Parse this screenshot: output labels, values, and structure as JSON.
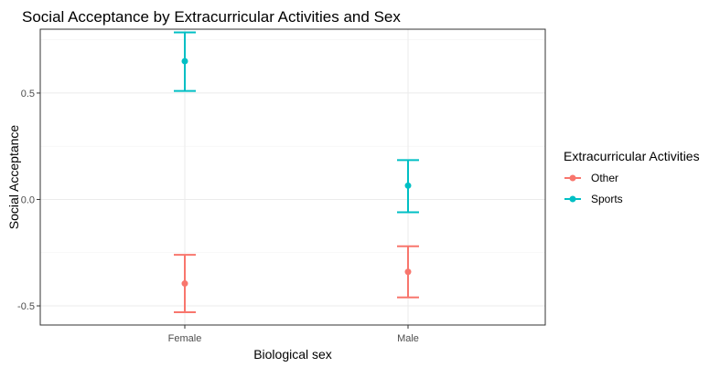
{
  "chart_data": {
    "type": "errorbar",
    "title": "Social Acceptance by Extracurricular Activities and Sex",
    "xlabel": "Biological sex",
    "ylabel": "Social Acceptance",
    "categories": [
      "Female",
      "Male"
    ],
    "ylim": [
      -0.59,
      0.8
    ],
    "yticks": [
      -0.5,
      0.0,
      0.5
    ],
    "ytick_labels": [
      "-0.5",
      "0.0",
      "0.5"
    ],
    "grid": true,
    "legend": {
      "title": "Extracurricular Activities",
      "position": "right"
    },
    "series": [
      {
        "name": "Other",
        "color": "#f8766d",
        "values": [
          -0.395,
          -0.34
        ],
        "lower": [
          -0.53,
          -0.46
        ],
        "upper": [
          -0.26,
          -0.22
        ]
      },
      {
        "name": "Sports",
        "color": "#00bfc4",
        "values": [
          0.65,
          0.065
        ],
        "lower": [
          0.51,
          -0.06
        ],
        "upper": [
          0.785,
          0.185
        ]
      }
    ]
  }
}
